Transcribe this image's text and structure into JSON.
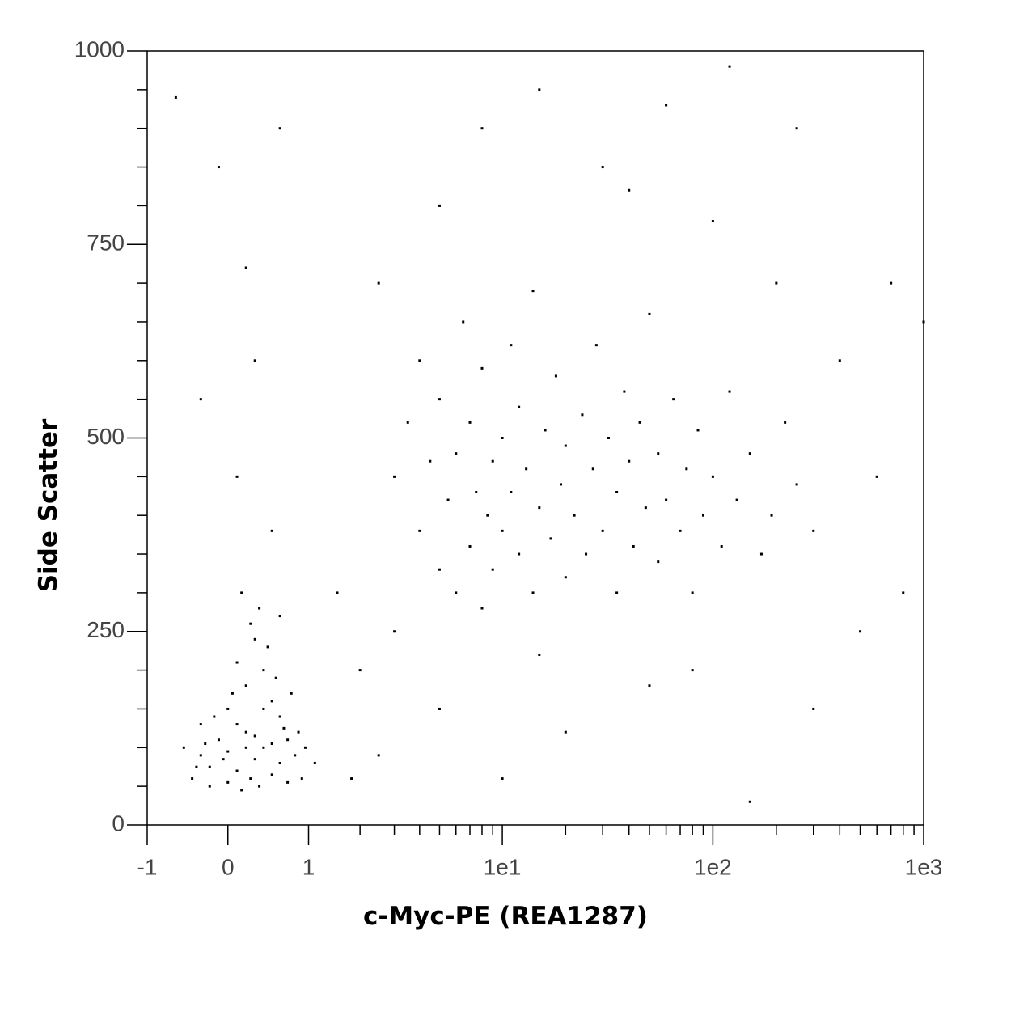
{
  "chart_data": {
    "type": "scatter",
    "xlabel": "c-Myc-PE (REA1287)",
    "ylabel": "Side Scatter",
    "xscale": "asinh",
    "color": "#000000",
    "xlim": [
      -1,
      1000
    ],
    "ylim": [
      0,
      1000
    ],
    "xticks": [
      -1,
      0,
      1,
      {
        "value": 10,
        "label": "1e1"
      },
      {
        "value": 100,
        "label": "1e2"
      },
      {
        "value": 1000,
        "label": "1e3"
      }
    ],
    "xminorticks": [
      2,
      3,
      4,
      5,
      6,
      7,
      8,
      9,
      20,
      30,
      40,
      50,
      60,
      70,
      80,
      90,
      200,
      300,
      400,
      500,
      600,
      700,
      800,
      900
    ],
    "yticks": [
      0,
      250,
      500,
      750,
      1000
    ],
    "yminorticks": [
      50,
      100,
      150,
      200,
      300,
      350,
      400,
      450,
      550,
      600,
      650,
      700,
      800,
      850,
      900,
      950
    ],
    "x": [
      -0.4,
      -0.3,
      -0.2,
      -0.1,
      0,
      0.1,
      0.2,
      0.3,
      0.4,
      0.5,
      0.6,
      0.7,
      0.8,
      0.9,
      -0.5,
      -0.3,
      0,
      0.2,
      0.1,
      0.3,
      0.4,
      0.5,
      0.6,
      0.25,
      0,
      0.15,
      0.35,
      -0.15,
      0.45,
      0.55,
      0.05,
      -0.2,
      0.7,
      0.65,
      0.85,
      -0.35,
      0.2,
      0.3,
      0.1,
      0.4,
      -0.05,
      0.5,
      0.25,
      -0.25,
      0.75,
      0.35,
      0.15,
      0.6,
      0.95,
      1.1,
      0.1,
      0.3,
      -0.3,
      0.5,
      0.2,
      -0.1,
      0.6,
      -0.6,
      1.5,
      2,
      2.5,
      1.8,
      3,
      3.5,
      4,
      4,
      4.5,
      5,
      5,
      5.5,
      6,
      6,
      6.5,
      7,
      7,
      7.5,
      8,
      8,
      8.5,
      9,
      9,
      10,
      10,
      11,
      11,
      12,
      12,
      13,
      14,
      14,
      15,
      16,
      17,
      18,
      19,
      20,
      20,
      22,
      24,
      25,
      27,
      28,
      30,
      32,
      35,
      35,
      38,
      40,
      42,
      45,
      48,
      50,
      55,
      55,
      60,
      65,
      70,
      75,
      80,
      85,
      90,
      100,
      110,
      120,
      130,
      150,
      170,
      190,
      220,
      250,
      300,
      2.5,
      5,
      8,
      15,
      30,
      60,
      100,
      200,
      400,
      600,
      800,
      500,
      300,
      50,
      20,
      10,
      5,
      40,
      120,
      250,
      700,
      3,
      15,
      80,
      150,
      1000
    ],
    "y": [
      60,
      90,
      75,
      110,
      95,
      70,
      120,
      85,
      100,
      65,
      80,
      110,
      90,
      60,
      100,
      130,
      150,
      180,
      210,
      240,
      200,
      160,
      140,
      260,
      55,
      45,
      50,
      140,
      230,
      190,
      170,
      50,
      55,
      125,
      120,
      75,
      100,
      115,
      130,
      150,
      85,
      105,
      60,
      105,
      170,
      280,
      300,
      270,
      100,
      80,
      450,
      600,
      550,
      380,
      720,
      850,
      900,
      940,
      300,
      200,
      90,
      60,
      450,
      520,
      380,
      600,
      470,
      330,
      550,
      420,
      300,
      480,
      650,
      360,
      520,
      430,
      280,
      590,
      400,
      470,
      330,
      500,
      380,
      430,
      620,
      350,
      540,
      460,
      300,
      690,
      410,
      510,
      370,
      580,
      440,
      320,
      490,
      400,
      530,
      350,
      460,
      620,
      380,
      500,
      300,
      430,
      560,
      470,
      360,
      520,
      410,
      660,
      340,
      480,
      420,
      550,
      380,
      460,
      300,
      510,
      400,
      450,
      360,
      560,
      420,
      480,
      350,
      400,
      520,
      440,
      380,
      700,
      800,
      900,
      950,
      850,
      930,
      780,
      700,
      600,
      450,
      300,
      250,
      150,
      180,
      120,
      60,
      150,
      820,
      980,
      900,
      700,
      250,
      220,
      200,
      30,
      650
    ]
  }
}
